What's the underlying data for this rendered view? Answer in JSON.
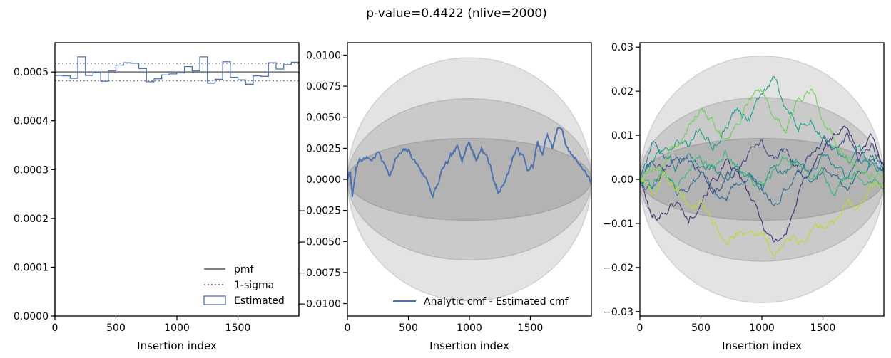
{
  "figure": {
    "suptitle": "p-value=0.4422 (nlive=2000)"
  },
  "chart_data": [
    {
      "type": "step",
      "xlabel": "Insertion index",
      "ylabel": "",
      "xlim": [
        0,
        2000
      ],
      "ylim": [
        0,
        0.00056
      ],
      "xticks": [
        0,
        500,
        1000,
        1500
      ],
      "yticks": [
        0.0,
        0.0001,
        0.0002,
        0.0003,
        0.0004,
        0.0005
      ],
      "ytick_labels": [
        "0.0000",
        "0.0001",
        "0.0002",
        "0.0003",
        "0.0004",
        "0.0005"
      ],
      "pmf": 0.0005,
      "sigma_band": [
        0.000482,
        0.000518
      ],
      "hist": {
        "name": "Estimated",
        "bin_edges": [
          0,
          62.5,
          125,
          187.5,
          250,
          312.5,
          375,
          437.5,
          500,
          562.5,
          625,
          687.5,
          750,
          812.5,
          875,
          937.5,
          1000,
          1062.5,
          1125,
          1187.5,
          1250,
          1312.5,
          1375,
          1437.5,
          1500,
          1562.5,
          1625,
          1687.5,
          1750,
          1812.5,
          1875,
          1937.5,
          2000
        ],
        "values": [
          0.000493,
          0.000492,
          0.000487,
          0.000531,
          0.000493,
          0.000499,
          0.000481,
          0.000502,
          0.000514,
          0.000519,
          0.000518,
          0.000507,
          0.00048,
          0.000486,
          0.000494,
          0.000496,
          0.000498,
          0.000511,
          0.000502,
          0.000531,
          0.000477,
          0.000485,
          0.000521,
          0.000489,
          0.000484,
          0.000475,
          0.000492,
          0.000491,
          0.000519,
          0.000506,
          0.000515,
          0.00052
        ]
      },
      "legend": {
        "location": "lower right",
        "entries": [
          {
            "label": "pmf",
            "style": "solid",
            "color": "#808080"
          },
          {
            "label": "1-sigma",
            "style": "dotted",
            "color": "#808080"
          },
          {
            "label": "Estimated",
            "style": "hist",
            "color": "#4c72b0"
          }
        ]
      }
    },
    {
      "type": "line",
      "xlabel": "Insertion index",
      "xlim": [
        0,
        2000
      ],
      "ylim": [
        -0.011,
        0.011
      ],
      "xticks": [
        0,
        500,
        1000,
        1500
      ],
      "yticks": [
        0.01,
        0.0075,
        0.005,
        0.0025,
        0.0,
        -0.0025,
        -0.005,
        -0.0075,
        -0.01
      ],
      "ytick_labels": [
        "0.0100",
        "0.0075",
        "0.0050",
        "0.0025",
        "0.0000",
        "−0.0025",
        "−0.0050",
        "−0.0075",
        "−0.0100"
      ],
      "sigma_ellipses": [
        0.0033,
        0.0065,
        0.0098
      ],
      "series": [
        {
          "name": "Analytic cmf - Estimated cmf",
          "color": "#4c72b0",
          "x": [
            0,
            25,
            40,
            55,
            70,
            100,
            150,
            200,
            250,
            300,
            350,
            400,
            450,
            500,
            550,
            600,
            650,
            700,
            740,
            780,
            820,
            860,
            900,
            940,
            980,
            1000,
            1030,
            1060,
            1100,
            1140,
            1180,
            1210,
            1240,
            1280,
            1320,
            1360,
            1400,
            1440,
            1480,
            1520,
            1560,
            1600,
            1640,
            1680,
            1720,
            1760,
            1800,
            1840,
            1880,
            1920,
            1960,
            2000
          ],
          "y": [
            0.0,
            0.0005,
            -0.0015,
            -0.0005,
            0.0008,
            0.0017,
            0.0018,
            0.0016,
            0.0022,
            0.0012,
            0.0005,
            0.0017,
            0.0021,
            0.0022,
            0.0015,
            0.0008,
            0.0,
            -0.0012,
            -0.0005,
            0.0008,
            0.0012,
            0.0018,
            0.0024,
            0.0018,
            0.0028,
            0.0031,
            0.0022,
            0.0016,
            0.0026,
            0.0019,
            0.0008,
            -0.0004,
            -0.0012,
            -0.0002,
            0.0006,
            0.002,
            0.0024,
            0.0018,
            0.0007,
            0.001,
            0.0028,
            0.0018,
            0.0036,
            0.0025,
            0.0039,
            0.0042,
            0.0025,
            0.0019,
            0.0017,
            0.001,
            0.0006,
            -0.0004
          ]
        }
      ],
      "legend": {
        "location": "lower right"
      }
    },
    {
      "type": "line",
      "xlabel": "Insertion index",
      "xlim": [
        0,
        2000
      ],
      "ylim": [
        -0.031,
        0.031
      ],
      "xticks": [
        0,
        500,
        1000,
        1500
      ],
      "yticks": [
        0.03,
        0.02,
        0.01,
        0.0,
        -0.01,
        -0.02,
        -0.03
      ],
      "ytick_labels": [
        "0.03",
        "0.02",
        "0.01",
        "0.00",
        "−0.01",
        "−0.02",
        "−0.03"
      ],
      "sigma_ellipses": [
        0.0093,
        0.0186,
        0.028
      ],
      "series": [
        {
          "color": "#46306f",
          "x": [
            0,
            100,
            200,
            300,
            400,
            500,
            600,
            700,
            800,
            900,
            1000,
            1100,
            1200,
            1300,
            1400,
            1500,
            1600,
            1700,
            1800,
            1900,
            2000
          ],
          "y": [
            0.0,
            -0.009,
            -0.007,
            -0.005,
            -0.009,
            -0.004,
            0.0,
            0.003,
            0.001,
            -0.004,
            -0.01,
            -0.014,
            -0.012,
            -0.004,
            0.003,
            0.007,
            0.01,
            0.012,
            0.006,
            0.009,
            0.002
          ]
        },
        {
          "color": "#3e4989",
          "x": [
            0,
            100,
            200,
            300,
            400,
            500,
            600,
            700,
            800,
            900,
            1000,
            1100,
            1200,
            1300,
            1400,
            1500,
            1600,
            1700,
            1800,
            1900,
            2000
          ],
          "y": [
            0.0,
            0.004,
            0.002,
            0.006,
            0.003,
            0.001,
            -0.003,
            -0.001,
            0.003,
            0.006,
            0.009,
            0.004,
            0.007,
            0.002,
            0.005,
            0.008,
            0.006,
            0.009,
            0.004,
            0.007,
            0.003
          ]
        },
        {
          "color": "#31688e",
          "x": [
            0,
            100,
            200,
            300,
            400,
            500,
            600,
            700,
            800,
            900,
            1000,
            1100,
            1200,
            1300,
            1400,
            1500,
            1600,
            1700,
            1800,
            1900,
            2000
          ],
          "y": [
            0.0,
            -0.002,
            0.001,
            -0.003,
            -0.001,
            0.002,
            -0.002,
            -0.005,
            -0.002,
            0.001,
            -0.003,
            -0.006,
            -0.002,
            0.002,
            0.0,
            0.003,
            0.001,
            -0.002,
            0.002,
            0.004,
            0.001
          ]
        },
        {
          "color": "#26828e",
          "x": [
            0,
            100,
            200,
            300,
            400,
            500,
            600,
            700,
            800,
            900,
            1000,
            1100,
            1200,
            1300,
            1400,
            1500,
            1600,
            1700,
            1800,
            1900,
            2000
          ],
          "y": [
            0.0,
            0.007,
            0.005,
            0.003,
            0.006,
            0.002,
            0.004,
            0.001,
            0.003,
            0.0,
            -0.002,
            0.003,
            0.001,
            0.004,
            0.002,
            0.005,
            0.003,
            0.001,
            0.004,
            0.006,
            0.002
          ]
        },
        {
          "color": "#1f9e89",
          "x": [
            0,
            100,
            200,
            300,
            400,
            500,
            600,
            700,
            800,
            900,
            1000,
            1100,
            1200,
            1300,
            1400,
            1500,
            1600,
            1700,
            1800,
            1900,
            2000
          ],
          "y": [
            0.0,
            0.003,
            0.006,
            0.009,
            0.007,
            0.011,
            0.008,
            0.012,
            0.016,
            0.014,
            0.019,
            0.022,
            0.017,
            0.012,
            0.015,
            0.01,
            0.007,
            0.004,
            0.006,
            0.003,
            0.001
          ]
        },
        {
          "color": "#35b779",
          "x": [
            0,
            100,
            200,
            300,
            400,
            500,
            600,
            700,
            800,
            900,
            1000,
            1100,
            1200,
            1300,
            1400,
            1500,
            1600,
            1700,
            1800,
            1900,
            2000
          ],
          "y": [
            0.0,
            -0.001,
            0.002,
            -0.002,
            0.001,
            0.004,
            0.002,
            0.006,
            0.003,
            0.0,
            -0.002,
            0.002,
            0.005,
            0.003,
            -0.001,
            0.001,
            -0.003,
            0.0,
            0.002,
            -0.001,
            -0.002
          ]
        },
        {
          "color": "#6ece58",
          "x": [
            0,
            100,
            200,
            300,
            400,
            500,
            600,
            700,
            800,
            900,
            1000,
            1100,
            1200,
            1300,
            1400,
            1500,
            1600,
            1700,
            1800,
            1900,
            2000
          ],
          "y": [
            0.0,
            0.002,
            0.004,
            0.008,
            0.012,
            0.016,
            0.013,
            0.009,
            0.014,
            0.018,
            0.02,
            0.015,
            0.012,
            0.019,
            0.021,
            0.013,
            0.009,
            0.005,
            0.003,
            0.001,
            0.002
          ]
        },
        {
          "color": "#b5de2b",
          "x": [
            0,
            100,
            200,
            300,
            400,
            500,
            600,
            700,
            800,
            900,
            1000,
            1100,
            1200,
            1300,
            1400,
            1500,
            1600,
            1700,
            1800,
            1900,
            2000
          ],
          "y": [
            0.0,
            -0.003,
            0.001,
            -0.002,
            -0.006,
            -0.005,
            -0.01,
            -0.015,
            -0.013,
            -0.014,
            -0.012,
            -0.016,
            -0.013,
            -0.015,
            -0.011,
            -0.01,
            -0.009,
            -0.004,
            -0.006,
            -0.002,
            -0.001
          ]
        }
      ]
    }
  ]
}
